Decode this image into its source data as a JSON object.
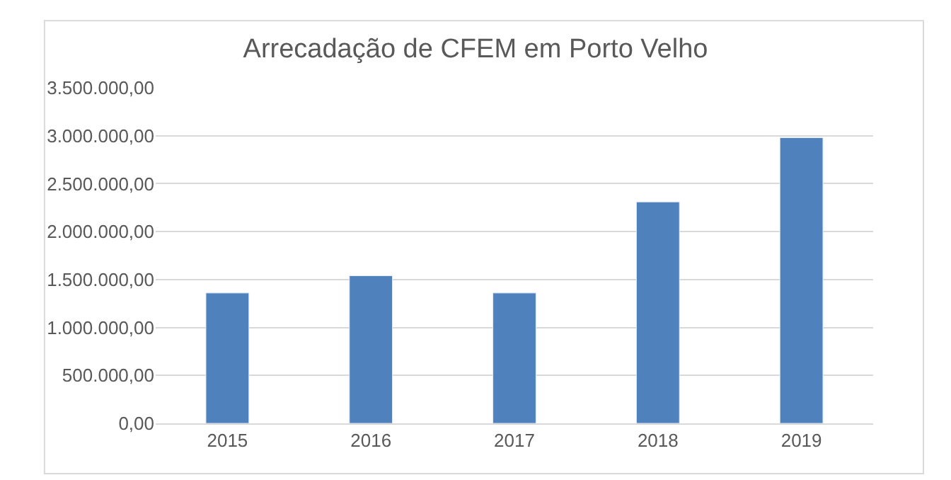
{
  "chart_data": {
    "type": "bar",
    "title": "Arrecadação de CFEM em Porto Velho",
    "categories": [
      "2015",
      "2016",
      "2017",
      "2018",
      "2019"
    ],
    "values": [
      1360000,
      1540000,
      1360000,
      2310000,
      2980000
    ],
    "color": "#4f81bd",
    "ylim": [
      0,
      3500000
    ],
    "yticks": [
      {
        "value": 0,
        "label": "0,00"
      },
      {
        "value": 500000,
        "label": "500.000,00"
      },
      {
        "value": 1000000,
        "label": "1.000.000,00"
      },
      {
        "value": 1500000,
        "label": "1.500.000,00"
      },
      {
        "value": 2000000,
        "label": "2.000.000,00"
      },
      {
        "value": 2500000,
        "label": "2.500.000,00"
      },
      {
        "value": 3000000,
        "label": "3.000.000,00"
      },
      {
        "value": 3500000,
        "label": "3.500.000,00"
      }
    ],
    "grid": "y"
  }
}
